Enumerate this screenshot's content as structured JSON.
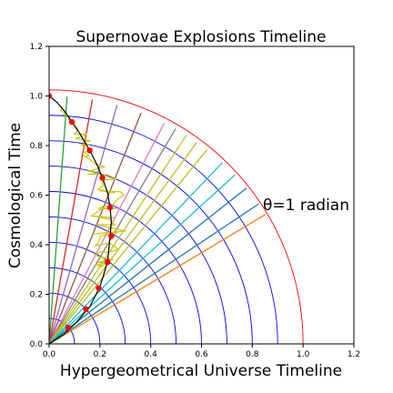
{
  "chart_data": {
    "type": "line",
    "title": "Supernovae Explosions Timeline",
    "xlabel": "Hypergeometrical Universe Timeline",
    "ylabel": "Cosmological Time",
    "xlim": [
      0,
      1.2
    ],
    "ylim": [
      0,
      1.2
    ],
    "xticks": [
      "0.0",
      "0.2",
      "0.4",
      "0.6",
      "0.8",
      "1.0",
      "1.2"
    ],
    "yticks": [
      "0.0",
      "0.2",
      "0.4",
      "0.6",
      "0.8",
      "1.0",
      "1.2"
    ],
    "grid": false,
    "annotation": "θ=1 radian",
    "circle_radii": [
      0.1,
      0.2,
      0.3,
      0.4,
      0.5,
      0.6,
      0.7,
      0.8,
      0.9,
      1.0
    ],
    "circle_colors": [
      "#0000ff",
      "#0000ff",
      "#0000ff",
      "#0000ff",
      "#0000ff",
      "#0000ff",
      "#0000ff",
      "#0000ff",
      "#0000ff",
      "#ff0000"
    ],
    "radial_angles_rad": [
      1.5,
      1.4,
      1.3,
      1.2,
      1.1,
      1.05,
      1.0,
      0.95,
      0.9,
      0.82,
      0.75,
      0.68,
      0.6,
      0.55
    ],
    "radial_colors": [
      "#2ca02c",
      "#d62728",
      "#9467bd",
      "#8c564b",
      "#e377c2",
      "#7f7f7f",
      "#bcbd22",
      "#bcbd22",
      "#bcbd22",
      "#17becf",
      "#17becf",
      "#1f77b4",
      "#1f77b4",
      "#ff7f0e"
    ],
    "red_points": {
      "x": [
        0.0,
        0.09,
        0.16,
        0.21,
        0.24,
        0.245,
        0.23,
        0.195,
        0.145,
        0.075
      ],
      "y": [
        1.0,
        0.895,
        0.78,
        0.67,
        0.55,
        0.435,
        0.33,
        0.225,
        0.14,
        0.065
      ]
    },
    "data_curve": {
      "x": [
        0.0,
        0.03,
        0.06,
        0.09,
        0.12,
        0.16,
        0.19,
        0.21,
        0.23,
        0.24,
        0.245,
        0.24,
        0.23,
        0.2,
        0.16,
        0.11,
        0.06,
        0.0
      ],
      "y": [
        1.0,
        0.975,
        0.94,
        0.895,
        0.85,
        0.78,
        0.72,
        0.67,
        0.61,
        0.55,
        0.49,
        0.435,
        0.33,
        0.23,
        0.15,
        0.09,
        0.04,
        0.0
      ]
    },
    "scatter_band": {
      "x": [
        0.05,
        0.09,
        0.13,
        0.16,
        0.19,
        0.21,
        0.23,
        0.24,
        0.245,
        0.24,
        0.23,
        0.22,
        0.21
      ],
      "y": [
        0.95,
        0.895,
        0.83,
        0.78,
        0.72,
        0.67,
        0.61,
        0.55,
        0.49,
        0.435,
        0.38,
        0.33,
        0.3
      ],
      "spread": [
        0.01,
        0.02,
        0.03,
        0.035,
        0.05,
        0.06,
        0.07,
        0.075,
        0.08,
        0.07,
        0.06,
        0.045,
        0.03
      ]
    },
    "colors": {
      "red_point": "#ff0000",
      "curve": "#000000",
      "scatter": "#c8c800"
    }
  }
}
